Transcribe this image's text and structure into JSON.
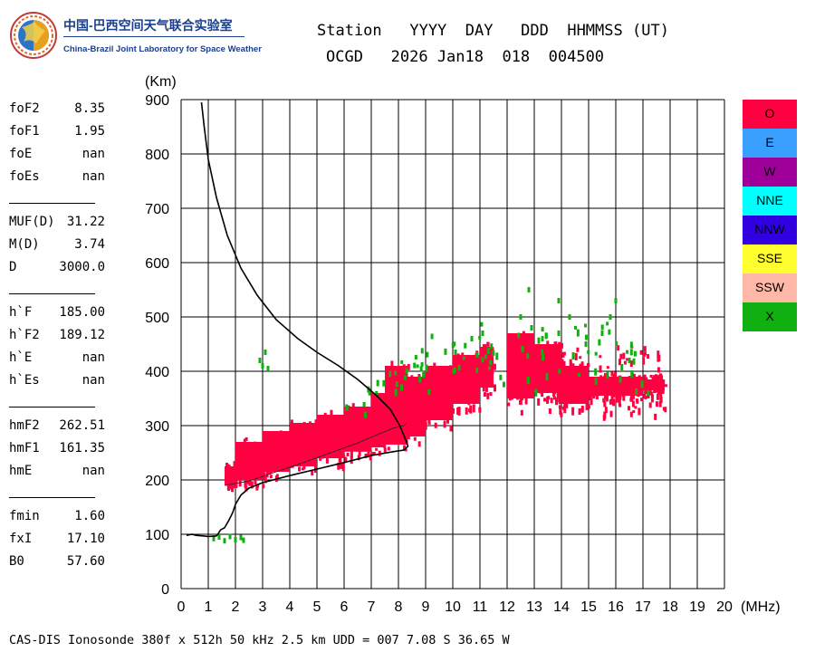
{
  "logo": {
    "zh": "中国-巴西空间天气联合实验室",
    "en": "China-Brazil Joint Laboratory for Space Weather"
  },
  "header": {
    "line1": "Station   YYYY  DAY   DDD  HHMMSS (UT)",
    "line2": "OCGD   2026 Jan18  018  004500"
  },
  "params": {
    "groups": [
      [
        [
          "foF2",
          "8.35"
        ],
        [
          "foF1",
          "1.95"
        ],
        [
          "foE",
          "nan"
        ],
        [
          "foEs",
          "nan"
        ]
      ],
      [
        [
          "MUF(D)",
          "31.22"
        ],
        [
          "M(D)",
          "3.74"
        ],
        [
          "D",
          "3000.0"
        ]
      ],
      [
        [
          "h`F",
          "185.00"
        ],
        [
          "h`F2",
          "189.12"
        ],
        [
          "h`E",
          "nan"
        ],
        [
          "h`Es",
          "nan"
        ]
      ],
      [
        [
          "hmF2",
          "262.51"
        ],
        [
          "hmF1",
          "161.35"
        ],
        [
          "hmE",
          "nan"
        ]
      ],
      [
        [
          "fmin",
          "1.60"
        ],
        [
          "fxI",
          "17.10"
        ],
        [
          "B0",
          "57.60"
        ]
      ]
    ]
  },
  "legend": [
    {
      "label": "O",
      "color": "#ff0040"
    },
    {
      "label": "E",
      "color": "#3aa0ff"
    },
    {
      "label": "W",
      "color": "#a0009a"
    },
    {
      "label": "NNE",
      "color": "#00ffff"
    },
    {
      "label": "NNW",
      "color": "#3000e0"
    },
    {
      "label": "SSE",
      "color": "#ffff30"
    },
    {
      "label": "SSW",
      "color": "#ffb8a8"
    },
    {
      "label": "X",
      "color": "#10b010"
    }
  ],
  "footer": "CAS-DIS Ionosonde 380f x 512h 50 kHz 2.5 km UDD = 007 7.08 S 36.65 W",
  "chart_data": {
    "type": "scatter",
    "ylabel": "(Km)",
    "xlabel": "(MHz)",
    "xlim": [
      0,
      20
    ],
    "ylim": [
      0,
      900
    ],
    "xticks": [
      0,
      1,
      2,
      3,
      4,
      5,
      6,
      7,
      8,
      9,
      10,
      11,
      12,
      13,
      14,
      15,
      16,
      17,
      18,
      19,
      20
    ],
    "yticks": [
      0,
      100,
      200,
      300,
      400,
      500,
      600,
      700,
      800,
      900
    ],
    "grid": true,
    "o_trace_bands": [
      {
        "f": [
          1.6,
          2.0
        ],
        "lo": 185,
        "hi": 235
      },
      {
        "f": [
          2.0,
          3.0
        ],
        "lo": 190,
        "hi": 280
      },
      {
        "f": [
          3.0,
          4.0
        ],
        "lo": 205,
        "hi": 300
      },
      {
        "f": [
          4.0,
          5.0
        ],
        "lo": 215,
        "hi": 315
      },
      {
        "f": [
          5.0,
          6.0
        ],
        "lo": 230,
        "hi": 330
      },
      {
        "f": [
          6.0,
          7.0
        ],
        "lo": 242,
        "hi": 345
      },
      {
        "f": [
          7.0,
          7.5
        ],
        "lo": 250,
        "hi": 370
      },
      {
        "f": [
          7.5,
          8.35
        ],
        "lo": 255,
        "hi": 420
      },
      {
        "f": [
          8.3,
          9.0
        ],
        "lo": 270,
        "hi": 400
      },
      {
        "f": [
          9.0,
          10.0
        ],
        "lo": 300,
        "hi": 420
      },
      {
        "f": [
          10.0,
          11.0
        ],
        "lo": 330,
        "hi": 440
      },
      {
        "f": [
          11.0,
          11.5
        ],
        "lo": 360,
        "hi": 455
      },
      {
        "f": [
          12.0,
          13.0
        ],
        "lo": 340,
        "hi": 480
      },
      {
        "f": [
          13.0,
          14.0
        ],
        "lo": 350,
        "hi": 460
      },
      {
        "f": [
          14.0,
          15.0
        ],
        "lo": 330,
        "hi": 420
      },
      {
        "f": [
          15.0,
          16.0
        ],
        "lo": 345,
        "hi": 400
      },
      {
        "f": [
          16.0,
          17.0
        ],
        "lo": 345,
        "hi": 400
      },
      {
        "f": [
          17.0,
          17.8
        ],
        "lo": 355,
        "hi": 395
      }
    ],
    "x_trace_points": [
      [
        1.2,
        92
      ],
      [
        1.4,
        95
      ],
      [
        1.6,
        88
      ],
      [
        1.8,
        96
      ],
      [
        2.0,
        90
      ],
      [
        2.2,
        94
      ],
      [
        2.3,
        89
      ],
      [
        2.9,
        420
      ],
      [
        3.0,
        410
      ],
      [
        3.1,
        435
      ],
      [
        3.2,
        405
      ],
      [
        10.7,
        460
      ],
      [
        10.9,
        430
      ],
      [
        11.1,
        470
      ],
      [
        12.5,
        500
      ],
      [
        12.9,
        480
      ],
      [
        13.3,
        460
      ],
      [
        13.9,
        470
      ],
      [
        14.3,
        500
      ],
      [
        14.9,
        450
      ],
      [
        15.5,
        470
      ],
      [
        16.0,
        530
      ],
      [
        12.8,
        550
      ],
      [
        13.9,
        530
      ],
      [
        15.8,
        500
      ],
      [
        16.5,
        420
      ],
      [
        17.2,
        360
      ]
    ],
    "profile_curve": [
      [
        0.75,
        895
      ],
      [
        0.85,
        850
      ],
      [
        1.0,
        790
      ],
      [
        1.3,
        720
      ],
      [
        1.7,
        650
      ],
      [
        2.2,
        590
      ],
      [
        2.8,
        540
      ],
      [
        3.5,
        495
      ],
      [
        4.3,
        460
      ],
      [
        5.0,
        435
      ],
      [
        5.8,
        410
      ],
      [
        6.5,
        385
      ],
      [
        7.2,
        355
      ],
      [
        7.7,
        330
      ],
      [
        8.05,
        300
      ],
      [
        8.3,
        270
      ],
      [
        8.35,
        262
      ],
      [
        8.2,
        255
      ],
      [
        7.8,
        252
      ],
      [
        7.0,
        245
      ],
      [
        6.0,
        232
      ],
      [
        5.0,
        220
      ],
      [
        4.0,
        208
      ],
      [
        3.0,
        195
      ],
      [
        2.5,
        185
      ],
      [
        2.2,
        172
      ],
      [
        2.0,
        155
      ],
      [
        1.9,
        140
      ],
      [
        1.75,
        125
      ],
      [
        1.6,
        112
      ],
      [
        1.45,
        108
      ],
      [
        1.35,
        100
      ],
      [
        1.3,
        97
      ],
      [
        1.0,
        96
      ],
      [
        0.8,
        97
      ],
      [
        0.55,
        98
      ],
      [
        0.4,
        100
      ],
      [
        0.2,
        98
      ]
    ],
    "virtual_trace_line": [
      [
        1.6,
        190
      ],
      [
        2.5,
        198
      ],
      [
        3.5,
        215
      ],
      [
        4.5,
        232
      ],
      [
        5.5,
        250
      ],
      [
        6.5,
        268
      ],
      [
        7.3,
        285
      ],
      [
        7.8,
        295
      ],
      [
        8.2,
        300
      ],
      [
        8.3,
        305
      ]
    ]
  }
}
